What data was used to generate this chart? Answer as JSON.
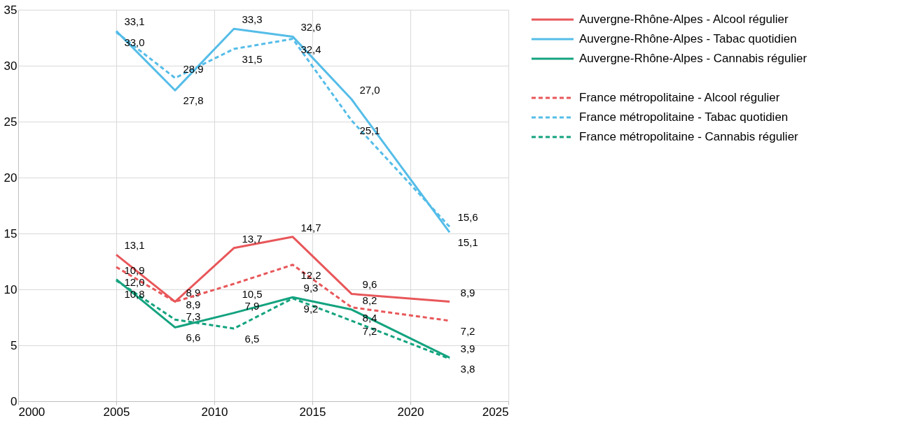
{
  "chart_data": {
    "type": "line",
    "x": [
      2005,
      2008,
      2011,
      2014,
      2017,
      2022
    ],
    "series": [
      {
        "name": "Auvergne-Rhône-Alpes - Alcool régulier",
        "color": "#e8575a",
        "line_style": "solid",
        "values": [
          13.1,
          8.9,
          13.7,
          14.7,
          9.6,
          8.9
        ],
        "value_labels": [
          "13,1",
          "8,9",
          "13,7",
          "14,7",
          "9,6",
          "8,9"
        ]
      },
      {
        "name": "Auvergne-Rhône-Alpes - Tabac quotidien",
        "color": "#55bde8",
        "line_style": "solid",
        "values": [
          33.1,
          27.8,
          33.3,
          32.6,
          27.0,
          15.1
        ],
        "value_labels": [
          "33,1",
          "27,8",
          "33,3",
          "32,6",
          "27,0",
          "15,1"
        ]
      },
      {
        "name": "Auvergne-Rhône-Alpes - Cannabis régulier",
        "color": "#14a37f",
        "line_style": "solid",
        "values": [
          10.9,
          6.6,
          7.9,
          9.3,
          8.2,
          3.9
        ],
        "value_labels": [
          "10,9",
          "6,6",
          "7,9",
          "9,3",
          "8,2",
          "3,9"
        ]
      },
      {
        "name": "France métropolitaine - Alcool régulier",
        "color": "#e8575a",
        "line_style": "dashed",
        "values": [
          12.0,
          8.9,
          10.5,
          12.2,
          8.4,
          7.2
        ],
        "value_labels": [
          "12,0",
          "8,9",
          "10,5",
          "12,2",
          "8,4",
          "7,2"
        ]
      },
      {
        "name": "France métropolitaine - Tabac quotidien",
        "color": "#55bde8",
        "line_style": "dashed",
        "values": [
          33.0,
          28.9,
          31.5,
          32.4,
          25.1,
          15.6
        ],
        "value_labels": [
          "33,0",
          "28,9",
          "31,5",
          "32,4",
          "25,1",
          "15,6"
        ]
      },
      {
        "name": "France métropolitaine - Cannabis régulier",
        "color": "#14a37f",
        "line_style": "dashed",
        "values": [
          10.8,
          7.3,
          6.5,
          9.2,
          7.2,
          3.8
        ],
        "value_labels": [
          "10,8",
          "7,3",
          "6,5",
          "9,2",
          "7,2",
          "3,8"
        ]
      }
    ],
    "xlim": [
      2000,
      2025
    ],
    "xticks": [
      2000,
      2005,
      2010,
      2015,
      2020,
      2025
    ],
    "ylim": [
      0,
      35
    ],
    "yticks": [
      0,
      5,
      10,
      15,
      20,
      25,
      30,
      35
    ],
    "grid": true,
    "legend": "right"
  }
}
